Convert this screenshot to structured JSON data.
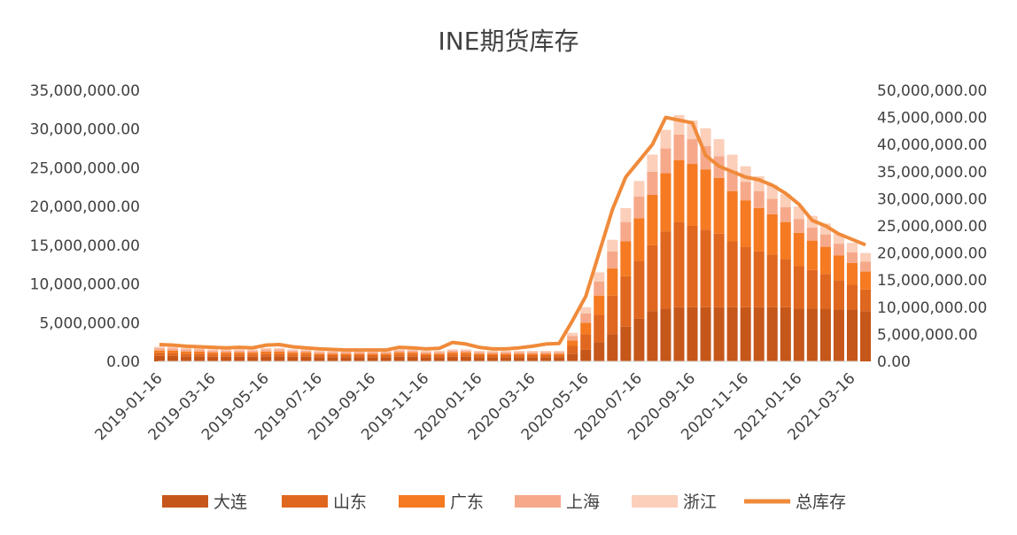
{
  "chart_data": {
    "type": "bar",
    "title": "INE期货库存",
    "x_tick_labels": [
      "2019-01-16",
      "2019-03-16",
      "2019-05-16",
      "2019-07-16",
      "2019-09-16",
      "2019-11-16",
      "2020-01-16",
      "2020-03-16",
      "2020-05-16",
      "2020-07-16",
      "2020-09-16",
      "2020-11-16",
      "2021-01-16",
      "2021-03-16"
    ],
    "y_left": {
      "range": [
        0,
        35000000
      ],
      "ticks": [
        "35,000,000.00",
        "30,000,000.00",
        "25,000,000.00",
        "20,000,000.00",
        "15,000,000.00",
        "10,000,000.00",
        "5,000,000.00",
        "0.00"
      ]
    },
    "y_right": {
      "range": [
        0,
        50000000
      ],
      "ticks": [
        "50,000,000.00",
        "45,000,000.00",
        "40,000,000.00",
        "35,000,000.00",
        "30,000,000.00",
        "25,000,000.00",
        "20,000,000.00",
        "15,000,000.00",
        "10,000,000.00",
        "5,000,000.00",
        "0.00"
      ]
    },
    "x_months": [
      0,
      0.5,
      1,
      1.5,
      2,
      2.5,
      3,
      3.5,
      4,
      4.5,
      5,
      5.5,
      6,
      6.5,
      7,
      7.5,
      8,
      8.5,
      9,
      9.5,
      10,
      10.5,
      11,
      11.5,
      12,
      12.5,
      13,
      13.5,
      14,
      14.5,
      15,
      15.5,
      16,
      16.5,
      17,
      17.5,
      18,
      18.5,
      19,
      19.5,
      20,
      20.5,
      21,
      21.5,
      22,
      22.5,
      23,
      23.5,
      24,
      24.5,
      25,
      25.5,
      26,
      26.5
    ],
    "series": [
      {
        "name": "大连",
        "color": "#c5571a",
        "axis": "left",
        "values": [
          700000,
          700000,
          650000,
          650000,
          600000,
          600000,
          600000,
          600000,
          650000,
          650000,
          600000,
          600000,
          550000,
          550000,
          550000,
          550000,
          550000,
          550000,
          600000,
          600000,
          550000,
          550000,
          600000,
          600000,
          550000,
          550000,
          550000,
          550000,
          550000,
          550000,
          550000,
          1000000,
          1500000,
          2500000,
          3500000,
          4500000,
          5500000,
          6500000,
          6800000,
          7000000,
          7000000,
          7000000,
          7000000,
          7000000,
          7000000,
          7000000,
          7000000,
          7000000,
          6800000,
          6800000,
          6800000,
          6700000,
          6700000,
          6500000
        ]
      },
      {
        "name": "山东",
        "color": "#e0671f",
        "axis": "left",
        "values": [
          400000,
          400000,
          350000,
          350000,
          300000,
          300000,
          300000,
          300000,
          350000,
          350000,
          300000,
          300000,
          250000,
          250000,
          250000,
          250000,
          250000,
          250000,
          300000,
          300000,
          250000,
          250000,
          300000,
          300000,
          250000,
          250000,
          250000,
          250000,
          250000,
          250000,
          250000,
          1000000,
          2000000,
          3500000,
          5000000,
          6500000,
          7500000,
          8500000,
          10000000,
          11000000,
          10500000,
          10000000,
          9500000,
          8500000,
          7800000,
          7200000,
          6800000,
          6200000,
          5500000,
          5000000,
          4500000,
          3800000,
          3200000,
          2800000
        ]
      },
      {
        "name": "广东",
        "color": "#f57a21",
        "axis": "left",
        "values": [
          300000,
          300000,
          280000,
          280000,
          250000,
          250000,
          250000,
          250000,
          280000,
          280000,
          250000,
          250000,
          200000,
          200000,
          200000,
          200000,
          200000,
          200000,
          250000,
          250000,
          200000,
          200000,
          250000,
          250000,
          200000,
          200000,
          200000,
          200000,
          200000,
          200000,
          200000,
          700000,
          1500000,
          2500000,
          3500000,
          4500000,
          5500000,
          6500000,
          7500000,
          8000000,
          8000000,
          7800000,
          7200000,
          6500000,
          6000000,
          5600000,
          5200000,
          4800000,
          4300000,
          3800000,
          3500000,
          3200000,
          2800000,
          2300000
        ]
      },
      {
        "name": "上海",
        "color": "#f6a98a",
        "axis": "left",
        "values": [
          300000,
          300000,
          280000,
          280000,
          260000,
          260000,
          250000,
          250000,
          280000,
          280000,
          250000,
          250000,
          220000,
          220000,
          220000,
          220000,
          220000,
          220000,
          250000,
          250000,
          220000,
          220000,
          250000,
          250000,
          220000,
          220000,
          220000,
          220000,
          220000,
          220000,
          220000,
          600000,
          1200000,
          1800000,
          2200000,
          2500000,
          2800000,
          3000000,
          3200000,
          3300000,
          3200000,
          3000000,
          2800000,
          2600000,
          2400000,
          2200000,
          2000000,
          1900000,
          1800000,
          1700000,
          1600000,
          1500000,
          1400000,
          1300000
        ]
      },
      {
        "name": "浙江",
        "color": "#fbcfba",
        "axis": "left",
        "values": [
          200000,
          200000,
          180000,
          180000,
          170000,
          170000,
          160000,
          160000,
          180000,
          180000,
          160000,
          160000,
          150000,
          150000,
          150000,
          150000,
          150000,
          150000,
          160000,
          160000,
          150000,
          150000,
          160000,
          160000,
          150000,
          150000,
          150000,
          150000,
          150000,
          150000,
          150000,
          400000,
          800000,
          1200000,
          1500000,
          1800000,
          2000000,
          2200000,
          2400000,
          2500000,
          2400000,
          2300000,
          2200000,
          2100000,
          2000000,
          1900000,
          1800000,
          1700000,
          1600000,
          1500000,
          1400000,
          1300000,
          1200000,
          1100000
        ]
      },
      {
        "name": "总库存",
        "color": "#f08a3a",
        "axis": "right",
        "type": "line",
        "values": [
          3100000,
          3000000,
          2800000,
          2700000,
          2600000,
          2500000,
          2600000,
          2500000,
          3000000,
          3100000,
          2700000,
          2500000,
          2300000,
          2200000,
          2100000,
          2100000,
          2100000,
          2100000,
          2600000,
          2500000,
          2300000,
          2400000,
          3500000,
          3200000,
          2600000,
          2300000,
          2300000,
          2500000,
          2800000,
          3200000,
          3300000,
          7500000,
          12000000,
          20000000,
          28000000,
          34000000,
          37000000,
          40000000,
          45000000,
          44500000,
          44000000,
          38000000,
          36000000,
          35000000,
          34000000,
          33500000,
          32500000,
          31000000,
          29000000,
          26000000,
          25000000,
          23500000,
          22500000,
          21500000
        ]
      }
    ],
    "legend": {
      "position": "bottom",
      "items": [
        "大连",
        "山东",
        "广东",
        "上海",
        "浙江",
        "总库存"
      ]
    },
    "grid": false
  }
}
